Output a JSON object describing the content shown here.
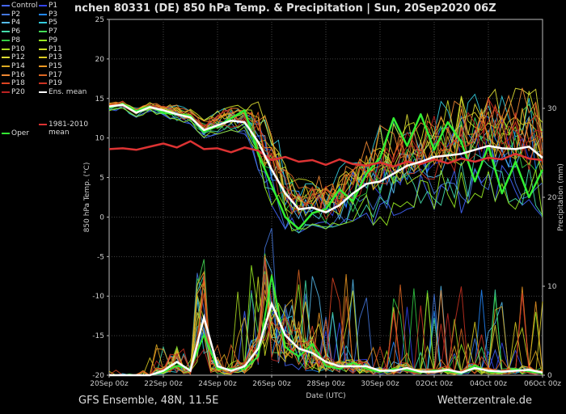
{
  "footer": {
    "left": "GFS Ensemble, 48N, 11.5E",
    "right": "Wetterzentrale.de"
  },
  "legend": [
    {
      "label": "Control",
      "color": "#4466ff"
    },
    {
      "label": "P1",
      "color": "#3344ee"
    },
    {
      "label": "P2",
      "color": "#4477dd"
    },
    {
      "label": "P3",
      "color": "#2288ff"
    },
    {
      "label": "P4",
      "color": "#55bbee"
    },
    {
      "label": "P5",
      "color": "#33ccdd"
    },
    {
      "label": "P6",
      "color": "#44ddaa"
    },
    {
      "label": "P7",
      "color": "#44dd55"
    },
    {
      "label": "P8",
      "color": "#33cc44"
    },
    {
      "label": "P9",
      "color": "#99ee22"
    },
    {
      "label": "P10",
      "color": "#aadd22"
    },
    {
      "label": "P11",
      "color": "#ccdd22"
    },
    {
      "label": "P12",
      "color": "#dddd33"
    },
    {
      "label": "P13",
      "color": "#ddcc22"
    },
    {
      "label": "P14",
      "color": "#ddaa22"
    },
    {
      "label": "P15",
      "color": "#ee9922"
    },
    {
      "label": "P16",
      "color": "#ee8833"
    },
    {
      "label": "P17",
      "color": "#dd6622"
    },
    {
      "label": "P18",
      "color": "#dd4422"
    },
    {
      "label": "P19",
      "color": "#cc3322"
    },
    {
      "label": "P20",
      "color": "#bb2222"
    },
    {
      "label": "Ens. mean",
      "color": "#ffffff"
    },
    {
      "label": "1981-2010\nmean",
      "color": "#dd3333"
    },
    {
      "label": "Oper",
      "color": "#33ee33"
    }
  ],
  "chart_data": {
    "type": "line",
    "title": "nchen 80331 (DE)  850 hPa Temp. & Precipitation | Sun, 20Sep2020 06Z",
    "xlabel": "Date (UTC)",
    "ylabel": "850 hPa Temp. (°C)",
    "ylabel_right": "Precipitation (mm)",
    "x_start": "2020-09-20 00Z",
    "x_end": "2020-10-06 00Z",
    "x_ticks": [
      "20Sep 00z",
      "22Sep 00z",
      "24Sep 00z",
      "26Sep 00z",
      "28Sep 00z",
      "30Sep 00z",
      "02Oct 00z",
      "04Oct 00z",
      "06Oct 00z"
    ],
    "ylim": [
      -20,
      25
    ],
    "y_ticks": [
      -20,
      -15,
      -10,
      -5,
      0,
      5,
      10,
      15,
      20,
      25
    ],
    "ylim_right": [
      0,
      40
    ],
    "y_ticks_right": [
      0,
      10,
      20,
      30
    ],
    "grid": true,
    "ens_mean": [
      [
        "2020-09-20 00Z",
        14.0
      ],
      [
        "2020-09-20 12Z",
        14.2
      ],
      [
        "2020-09-21 00Z",
        13.2
      ],
      [
        "2020-09-21 12Z",
        13.9
      ],
      [
        "2020-09-22 00Z",
        13.5
      ],
      [
        "2020-09-22 12Z",
        13.0
      ],
      [
        "2020-09-23 00Z",
        12.6
      ],
      [
        "2020-09-23 12Z",
        11.0
      ],
      [
        "2020-09-24 00Z",
        11.6
      ],
      [
        "2020-09-24 12Z",
        12.2
      ],
      [
        "2020-09-25 00Z",
        12.0
      ],
      [
        "2020-09-25 12Z",
        9.5
      ],
      [
        "2020-09-26 00Z",
        6.0
      ],
      [
        "2020-09-26 12Z",
        3.0
      ],
      [
        "2020-09-27 00Z",
        1.0
      ],
      [
        "2020-09-27 12Z",
        1.2
      ],
      [
        "2020-09-28 00Z",
        0.6
      ],
      [
        "2020-09-28 12Z",
        1.5
      ],
      [
        "2020-09-29 00Z",
        3.0
      ],
      [
        "2020-09-29 12Z",
        4.2
      ],
      [
        "2020-09-30 00Z",
        4.5
      ],
      [
        "2020-09-30 12Z",
        5.5
      ],
      [
        "2020-10-01 00Z",
        6.5
      ],
      [
        "2020-10-01 12Z",
        7.0
      ],
      [
        "2020-10-02 00Z",
        7.6
      ],
      [
        "2020-10-02 12Z",
        7.8
      ],
      [
        "2020-10-03 00Z",
        8.0
      ],
      [
        "2020-10-03 12Z",
        8.5
      ],
      [
        "2020-10-04 00Z",
        9.0
      ],
      [
        "2020-10-04 12Z",
        8.7
      ],
      [
        "2020-10-05 00Z",
        8.6
      ],
      [
        "2020-10-05 12Z",
        8.9
      ],
      [
        "2020-10-06 00Z",
        7.5
      ]
    ],
    "climate_mean": [
      [
        "2020-09-20 00Z",
        8.6
      ],
      [
        "2020-09-20 12Z",
        8.7
      ],
      [
        "2020-09-21 00Z",
        8.5
      ],
      [
        "2020-09-21 12Z",
        8.9
      ],
      [
        "2020-09-22 00Z",
        9.3
      ],
      [
        "2020-09-22 12Z",
        8.8
      ],
      [
        "2020-09-23 00Z",
        9.6
      ],
      [
        "2020-09-23 12Z",
        8.6
      ],
      [
        "2020-09-24 00Z",
        8.7
      ],
      [
        "2020-09-24 12Z",
        8.2
      ],
      [
        "2020-09-25 00Z",
        8.8
      ],
      [
        "2020-09-25 12Z",
        8.4
      ],
      [
        "2020-09-26 00Z",
        7.2
      ],
      [
        "2020-09-26 12Z",
        7.6
      ],
      [
        "2020-09-27 00Z",
        7.0
      ],
      [
        "2020-09-27 12Z",
        7.2
      ],
      [
        "2020-09-28 00Z",
        6.6
      ],
      [
        "2020-09-28 12Z",
        7.3
      ],
      [
        "2020-09-29 00Z",
        6.7
      ],
      [
        "2020-09-29 12Z",
        6.5
      ],
      [
        "2020-09-30 00Z",
        6.9
      ],
      [
        "2020-09-30 12Z",
        6.4
      ],
      [
        "2020-10-01 00Z",
        7.0
      ],
      [
        "2020-10-01 12Z",
        6.7
      ],
      [
        "2020-10-02 00Z",
        7.3
      ],
      [
        "2020-10-02 12Z",
        6.8
      ],
      [
        "2020-10-03 00Z",
        7.4
      ],
      [
        "2020-10-03 12Z",
        7.0
      ],
      [
        "2020-10-04 00Z",
        7.5
      ],
      [
        "2020-10-04 12Z",
        7.3
      ],
      [
        "2020-10-05 00Z",
        8.0
      ],
      [
        "2020-10-05 12Z",
        7.4
      ],
      [
        "2020-10-06 00Z",
        7.2
      ]
    ],
    "oper": [
      [
        "2020-09-20 00Z",
        13.8
      ],
      [
        "2020-09-20 12Z",
        14.3
      ],
      [
        "2020-09-21 00Z",
        13.4
      ],
      [
        "2020-09-21 12Z",
        14.0
      ],
      [
        "2020-09-22 00Z",
        13.2
      ],
      [
        "2020-09-22 12Z",
        13.0
      ],
      [
        "2020-09-23 00Z",
        12.8
      ],
      [
        "2020-09-23 12Z",
        10.8
      ],
      [
        "2020-09-24 00Z",
        11.5
      ],
      [
        "2020-09-24 12Z",
        12.5
      ],
      [
        "2020-09-25 00Z",
        13.5
      ],
      [
        "2020-09-25 12Z",
        8.0
      ],
      [
        "2020-09-26 00Z",
        4.0
      ],
      [
        "2020-09-26 12Z",
        0.0
      ],
      [
        "2020-09-27 00Z",
        -1.5
      ],
      [
        "2020-09-27 12Z",
        0.5
      ],
      [
        "2020-09-28 00Z",
        1.0
      ],
      [
        "2020-09-28 12Z",
        3.5
      ],
      [
        "2020-09-29 00Z",
        2.0
      ],
      [
        "2020-09-29 12Z",
        5.5
      ],
      [
        "2020-09-30 00Z",
        7.5
      ],
      [
        "2020-09-30 12Z",
        12.5
      ],
      [
        "2020-10-01 00Z",
        9.0
      ],
      [
        "2020-10-01 12Z",
        13.0
      ],
      [
        "2020-10-02 00Z",
        8.5
      ],
      [
        "2020-10-02 12Z",
        12.0
      ],
      [
        "2020-10-03 00Z",
        9.5
      ],
      [
        "2020-10-03 12Z",
        4.5
      ],
      [
        "2020-10-04 00Z",
        9.0
      ],
      [
        "2020-10-04 12Z",
        3.0
      ],
      [
        "2020-10-05 00Z",
        7.0
      ],
      [
        "2020-10-05 12Z",
        2.5
      ],
      [
        "2020-10-06 00Z",
        6.0
      ]
    ],
    "ens_spread_high": [
      14.6,
      14.8,
      14.0,
      14.5,
      14.2,
      14.5,
      14.0,
      13.5,
      14.5,
      15.5,
      15.0,
      17.0,
      13.0,
      9.0,
      6.5,
      7.0,
      8.0,
      8.5,
      10.0,
      11.0,
      12.0,
      13.0,
      14.0,
      14.5,
      15.0,
      15.5,
      16.5,
      17.0,
      18.0,
      17.5,
      16.5,
      18.0,
      16.0
    ],
    "ens_spread_low": [
      13.3,
      13.6,
      12.6,
      13.2,
      12.6,
      12.2,
      11.8,
      10.0,
      10.5,
      11.0,
      10.5,
      6.0,
      1.5,
      -1.5,
      -2.0,
      -1.0,
      -1.5,
      -1.0,
      -0.5,
      0.5,
      -2.5,
      0.0,
      1.0,
      1.5,
      1.0,
      2.0,
      0.5,
      3.0,
      1.5,
      2.5,
      1.0,
      2.0,
      0.0
    ],
    "ens_mean_precip": [
      0.0,
      0.0,
      0.0,
      0.0,
      0.5,
      1.5,
      0.5,
      6.5,
      1.0,
      0.5,
      1.0,
      3.0,
      8.0,
      4.5,
      3.0,
      2.5,
      1.5,
      1.0,
      1.0,
      1.0,
      0.5,
      0.5,
      0.8,
      0.4,
      0.4,
      0.6,
      0.3,
      0.8,
      0.5,
      0.4,
      0.5,
      0.6,
      0.3
    ]
  }
}
